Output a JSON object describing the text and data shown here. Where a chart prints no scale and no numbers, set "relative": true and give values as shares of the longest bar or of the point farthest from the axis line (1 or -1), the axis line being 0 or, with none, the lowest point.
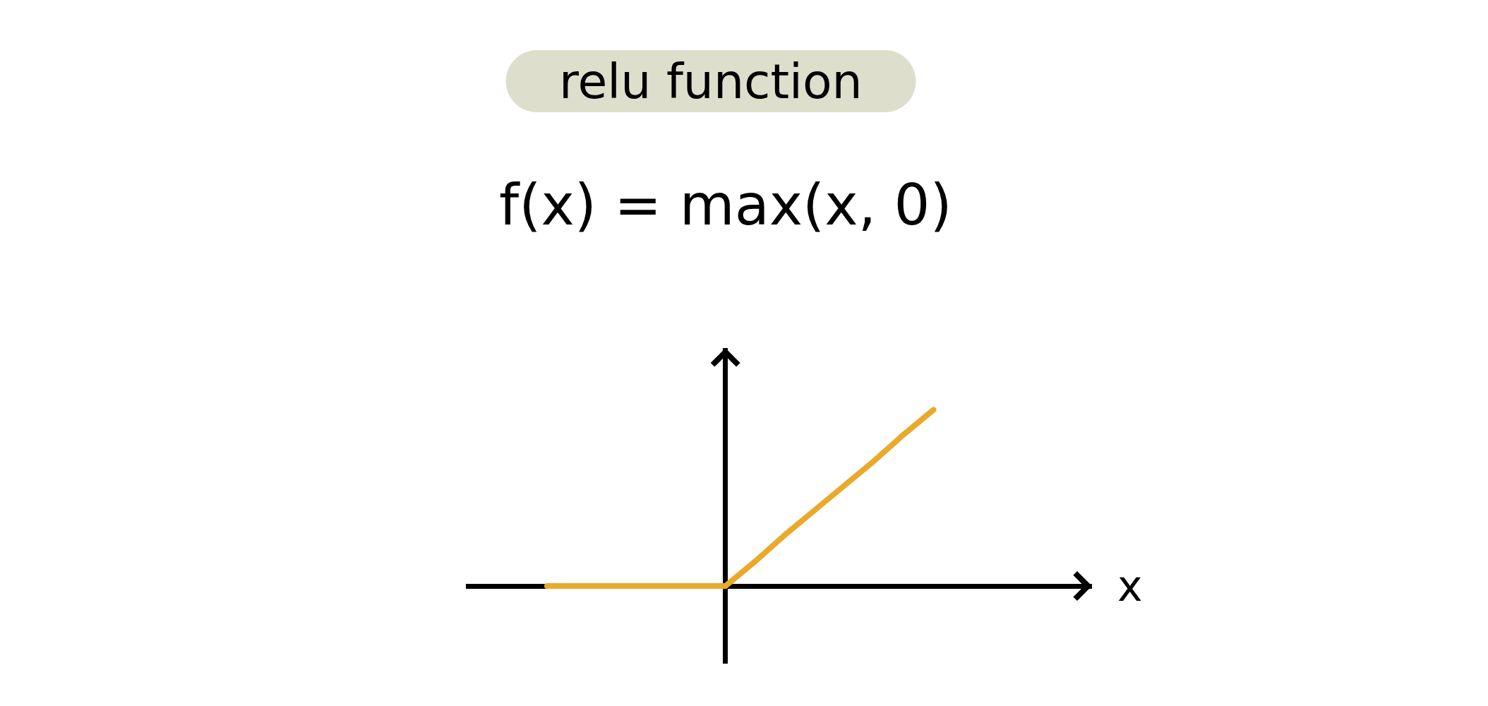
{
  "chart_data": {
    "type": "line",
    "title": "relu function",
    "subtitle": "f(x) = max(x, 0)",
    "xlabel": "x",
    "relative": true,
    "categories": [
      null,
      null,
      null,
      null,
      null,
      null,
      null,
      null,
      null,
      null,
      null,
      null,
      null,
      null
    ],
    "series": [
      {
        "color": "#e9aa2b",
        "values": [
          0,
          0,
          0,
          0,
          0,
          0,
          0,
          0.14,
          0.29,
          0.43,
          0.57,
          0.71,
          0.86,
          1
        ]
      }
    ]
  }
}
